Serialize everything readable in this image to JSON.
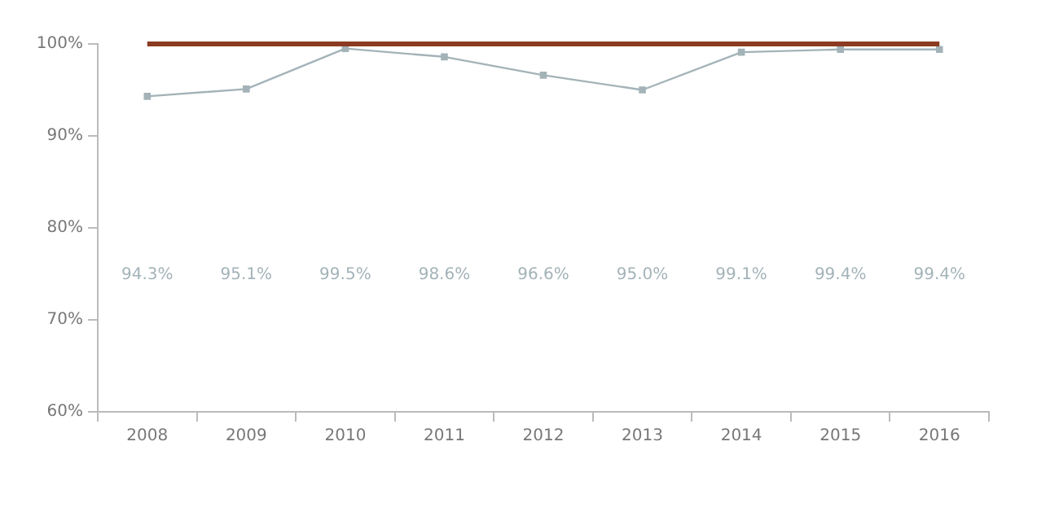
{
  "chart_data": {
    "type": "line",
    "categories": [
      "2008",
      "2009",
      "2010",
      "2011",
      "2012",
      "2013",
      "2014",
      "2015",
      "2016"
    ],
    "series": [
      {
        "color": "#a3b3b8",
        "values": [
          94.3,
          95.1,
          99.5,
          98.6,
          96.6,
          95.0,
          99.1,
          99.4,
          99.4
        ]
      }
    ],
    "value_labels": [
      "94.3%",
      "95.1%",
      "99.5%",
      "98.6%",
      "96.6%",
      "95.0%",
      "99.1%",
      "99.4%",
      "99.4%"
    ],
    "ylim": [
      60,
      100
    ],
    "yticks": [
      {
        "value": 60,
        "label": "60%"
      },
      {
        "value": 70,
        "label": "70%"
      },
      {
        "value": 80,
        "label": "80%"
      },
      {
        "value": 90,
        "label": "90%"
      },
      {
        "value": 100,
        "label": "100%"
      }
    ],
    "ref_lines": [
      {
        "axis": "y",
        "value": 100,
        "color": "#8c3b22"
      }
    ],
    "grid": false,
    "legend": false,
    "marker": "square",
    "line_style": "solid"
  }
}
